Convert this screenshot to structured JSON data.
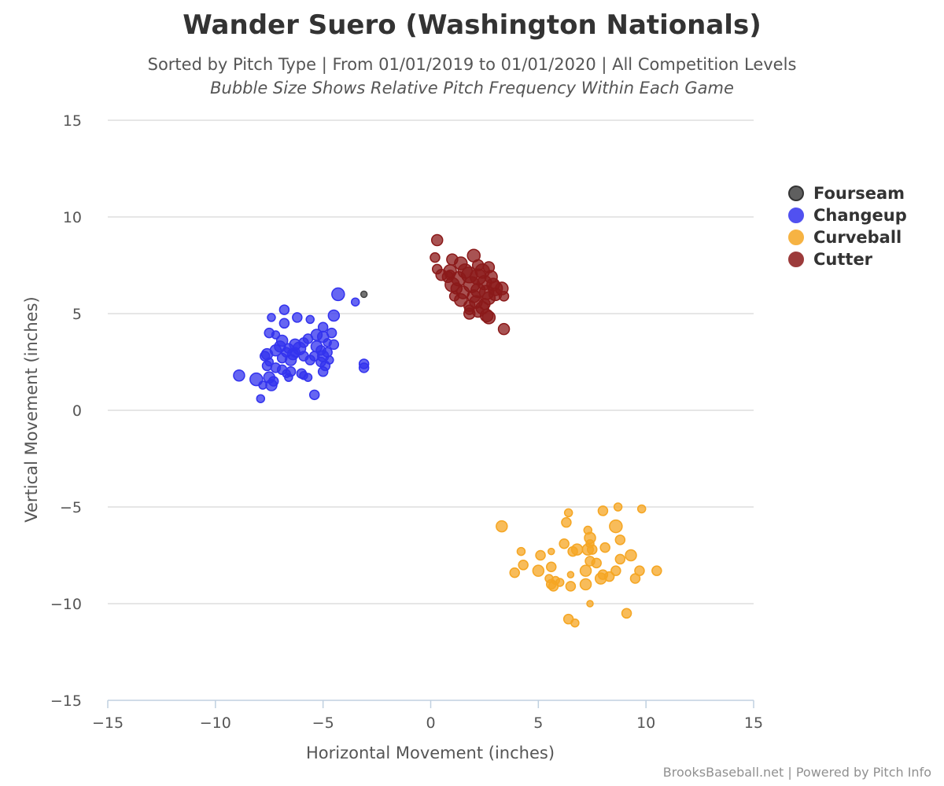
{
  "chart_data": {
    "type": "scatter",
    "title": "Wander Suero (Washington Nationals)",
    "subtitle": "Sorted by Pitch Type | From 01/01/2019 to 01/01/2020 | All Competition Levels",
    "subtitle2": "Bubble Size Shows Relative Pitch Frequency Within Each Game",
    "xlabel": "Horizontal Movement (inches)",
    "ylabel": "Vertical Movement (inches)",
    "xlim": [
      -15,
      15
    ],
    "ylim": [
      -15,
      15
    ],
    "x_ticks": [
      -15,
      -10,
      -5,
      0,
      5,
      10,
      15
    ],
    "y_ticks": [
      -15,
      -10,
      -5,
      0,
      5,
      10,
      15
    ],
    "x_tick_labels": [
      "−15",
      "−10",
      "−5",
      "0",
      "5",
      "10",
      "15"
    ],
    "y_tick_labels": [
      "−15",
      "−10",
      "−5",
      "0",
      "5",
      "10",
      "15"
    ],
    "grid": "horizontal",
    "legend_position": "right",
    "series": [
      {
        "name": "Fourseam",
        "color": "#444444",
        "points": [
          [
            -3.1,
            6.0,
            4
          ]
        ]
      },
      {
        "name": "Changeup",
        "color": "#3333ee",
        "points": [
          [
            -4.3,
            6.0,
            8
          ],
          [
            -3.5,
            5.6,
            5
          ],
          [
            -4.5,
            4.9,
            7
          ],
          [
            -6.8,
            5.2,
            6
          ],
          [
            -6.2,
            4.8,
            6
          ],
          [
            -5.6,
            4.7,
            5
          ],
          [
            -7.4,
            4.8,
            5
          ],
          [
            -6.8,
            4.5,
            6
          ],
          [
            -5.0,
            4.3,
            6
          ],
          [
            -7.5,
            4.0,
            6
          ],
          [
            -4.6,
            4.0,
            6
          ],
          [
            -5.3,
            3.9,
            7
          ],
          [
            -5.0,
            3.8,
            7
          ],
          [
            -7.2,
            3.9,
            5
          ],
          [
            -6.9,
            3.6,
            7
          ],
          [
            -5.7,
            3.7,
            6
          ],
          [
            -5.9,
            3.5,
            6
          ],
          [
            -4.8,
            3.5,
            5
          ],
          [
            -4.5,
            3.4,
            6
          ],
          [
            -6.3,
            3.4,
            7
          ],
          [
            -7.0,
            3.3,
            7
          ],
          [
            -6.6,
            3.2,
            6
          ],
          [
            -6.1,
            3.2,
            8
          ],
          [
            -5.3,
            3.3,
            7
          ],
          [
            -5.1,
            3.1,
            6
          ],
          [
            -4.8,
            3.0,
            6
          ],
          [
            -6.7,
            3.0,
            6
          ],
          [
            -7.2,
            3.1,
            7
          ],
          [
            -6.4,
            2.9,
            7
          ],
          [
            -5.9,
            2.8,
            6
          ],
          [
            -5.4,
            2.8,
            6
          ],
          [
            -5.0,
            2.8,
            7
          ],
          [
            -7.6,
            2.9,
            7
          ],
          [
            -7.7,
            2.8,
            6
          ],
          [
            -6.9,
            2.7,
            6
          ],
          [
            -6.5,
            2.6,
            7
          ],
          [
            -5.6,
            2.6,
            6
          ],
          [
            -5.1,
            2.5,
            6
          ],
          [
            -4.7,
            2.6,
            5
          ],
          [
            -7.5,
            2.5,
            5
          ],
          [
            -7.6,
            2.3,
            6
          ],
          [
            -7.2,
            2.2,
            6
          ],
          [
            -6.9,
            2.1,
            6
          ],
          [
            -6.5,
            2.0,
            6
          ],
          [
            -6.7,
            1.9,
            5
          ],
          [
            -6.0,
            1.9,
            6
          ],
          [
            -5.9,
            1.8,
            5
          ],
          [
            -5.0,
            2.0,
            6
          ],
          [
            -3.1,
            2.4,
            6
          ],
          [
            -3.1,
            2.2,
            6
          ],
          [
            -8.9,
            1.8,
            7
          ],
          [
            -8.1,
            1.6,
            8
          ],
          [
            -7.5,
            1.7,
            7
          ],
          [
            -7.3,
            1.5,
            6
          ],
          [
            -6.6,
            1.7,
            5
          ],
          [
            -5.7,
            1.7,
            5
          ],
          [
            -7.8,
            1.3,
            5
          ],
          [
            -7.4,
            1.3,
            7
          ],
          [
            -5.4,
            0.8,
            6
          ],
          [
            -7.9,
            0.6,
            5
          ],
          [
            -4.9,
            2.3,
            6
          ],
          [
            -6.3,
            3.0,
            6
          ]
        ]
      },
      {
        "name": "Curveball",
        "color": "#f5a623",
        "points": [
          [
            3.3,
            -6.0,
            7
          ],
          [
            6.4,
            -5.3,
            5
          ],
          [
            6.3,
            -5.8,
            6
          ],
          [
            8.0,
            -5.2,
            6
          ],
          [
            8.7,
            -5.0,
            5
          ],
          [
            9.8,
            -5.1,
            5
          ],
          [
            8.6,
            -6.0,
            8
          ],
          [
            7.3,
            -6.2,
            5
          ],
          [
            7.4,
            -6.6,
            7
          ],
          [
            6.2,
            -6.9,
            6
          ],
          [
            8.8,
            -6.7,
            6
          ],
          [
            7.4,
            -6.9,
            5
          ],
          [
            4.2,
            -7.3,
            5
          ],
          [
            5.1,
            -7.5,
            6
          ],
          [
            5.6,
            -7.3,
            4
          ],
          [
            6.6,
            -7.3,
            6
          ],
          [
            6.8,
            -7.2,
            7
          ],
          [
            7.3,
            -7.2,
            7
          ],
          [
            8.1,
            -7.1,
            6
          ],
          [
            9.3,
            -7.5,
            7
          ],
          [
            8.8,
            -7.7,
            6
          ],
          [
            7.4,
            -7.8,
            6
          ],
          [
            7.7,
            -7.9,
            6
          ],
          [
            4.3,
            -8.0,
            6
          ],
          [
            5.6,
            -8.1,
            6
          ],
          [
            5.0,
            -8.3,
            7
          ],
          [
            7.2,
            -8.3,
            7
          ],
          [
            8.0,
            -8.5,
            6
          ],
          [
            8.6,
            -8.3,
            6
          ],
          [
            9.7,
            -8.3,
            6
          ],
          [
            10.5,
            -8.3,
            6
          ],
          [
            3.9,
            -8.4,
            6
          ],
          [
            6.5,
            -8.5,
            4
          ],
          [
            5.5,
            -8.7,
            5
          ],
          [
            5.8,
            -8.8,
            5
          ],
          [
            6.0,
            -8.9,
            5
          ],
          [
            7.9,
            -8.7,
            7
          ],
          [
            8.3,
            -8.6,
            6
          ],
          [
            9.5,
            -8.7,
            6
          ],
          [
            5.6,
            -9.0,
            6
          ],
          [
            5.7,
            -9.1,
            6
          ],
          [
            6.5,
            -9.1,
            6
          ],
          [
            7.2,
            -9.0,
            7
          ],
          [
            7.4,
            -10.0,
            4
          ],
          [
            9.1,
            -10.5,
            6
          ],
          [
            6.4,
            -10.8,
            6
          ],
          [
            6.7,
            -11.0,
            5
          ],
          [
            7.5,
            -7.2,
            6
          ]
        ]
      },
      {
        "name": "Cutter",
        "color": "#8b1a1a",
        "points": [
          [
            0.3,
            8.8,
            7
          ],
          [
            2.0,
            8.0,
            8
          ],
          [
            1.0,
            7.8,
            7
          ],
          [
            1.4,
            7.6,
            8
          ],
          [
            0.2,
            7.9,
            6
          ],
          [
            2.7,
            7.4,
            7
          ],
          [
            0.3,
            7.3,
            6
          ],
          [
            0.9,
            7.2,
            8
          ],
          [
            1.6,
            7.2,
            9
          ],
          [
            2.4,
            7.2,
            9
          ],
          [
            1.8,
            7.0,
            10
          ],
          [
            2.2,
            6.9,
            10
          ],
          [
            0.5,
            7.0,
            7
          ],
          [
            0.8,
            6.9,
            7
          ],
          [
            1.3,
            6.8,
            9
          ],
          [
            2.8,
            6.9,
            8
          ],
          [
            1.9,
            6.5,
            10
          ],
          [
            2.5,
            6.6,
            9
          ],
          [
            1.0,
            6.5,
            9
          ],
          [
            2.9,
            6.5,
            8
          ],
          [
            3.0,
            6.3,
            9
          ],
          [
            3.3,
            6.3,
            8
          ],
          [
            2.2,
            6.2,
            9
          ],
          [
            2.6,
            6.1,
            9
          ],
          [
            1.5,
            6.1,
            8
          ],
          [
            3.0,
            6.0,
            8
          ],
          [
            2.0,
            5.9,
            8
          ],
          [
            1.1,
            5.9,
            6
          ],
          [
            3.4,
            5.9,
            6
          ],
          [
            2.7,
            5.8,
            8
          ],
          [
            1.4,
            5.7,
            8
          ],
          [
            2.1,
            5.6,
            8
          ],
          [
            2.5,
            5.5,
            7
          ],
          [
            1.8,
            5.4,
            7
          ],
          [
            2.4,
            5.3,
            8
          ],
          [
            1.8,
            5.0,
            7
          ],
          [
            2.6,
            4.9,
            8
          ],
          [
            2.7,
            4.8,
            8
          ],
          [
            1.8,
            5.2,
            6
          ],
          [
            2.2,
            5.1,
            7
          ],
          [
            3.4,
            4.2,
            7
          ],
          [
            0.9,
            7.0,
            6
          ],
          [
            2.2,
            7.5,
            7
          ],
          [
            1.2,
            6.3,
            7
          ]
        ]
      }
    ]
  },
  "credits": "BrooksBaseball.net | Powered by Pitch Info"
}
